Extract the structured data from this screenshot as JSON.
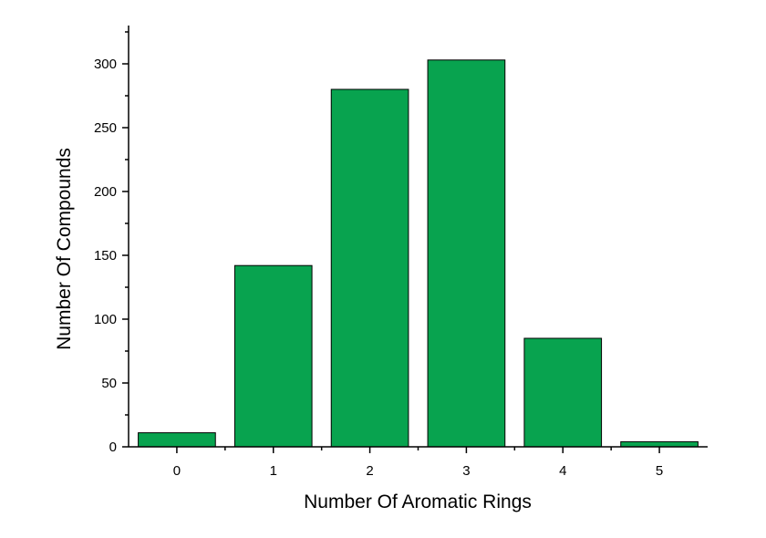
{
  "chart_data": {
    "type": "bar",
    "title": "",
    "xlabel": "Number Of Aromatic Rings",
    "ylabel": "Number Of Compounds",
    "categories": [
      "0",
      "1",
      "2",
      "3",
      "4",
      "5"
    ],
    "values": [
      11,
      142,
      280,
      303,
      85,
      4
    ],
    "ylim": [
      0,
      330
    ],
    "yticks": [
      0,
      50,
      100,
      150,
      200,
      250,
      300
    ],
    "bar_color": "#08a34f",
    "grid": false,
    "legend": "none"
  }
}
